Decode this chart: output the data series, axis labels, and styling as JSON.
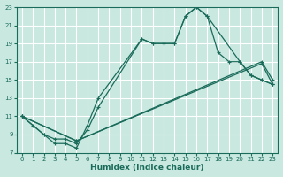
{
  "xlabel": "Humidex (Indice chaleur)",
  "background_color": "#c8e8e0",
  "line_color": "#1a6b5a",
  "grid_color": "#ffffff",
  "xlim": [
    -0.5,
    23.5
  ],
  "ylim": [
    7,
    23
  ],
  "xticks": [
    0,
    1,
    2,
    3,
    4,
    5,
    6,
    7,
    8,
    9,
    10,
    11,
    12,
    13,
    14,
    15,
    16,
    17,
    18,
    19,
    20,
    21,
    22,
    23
  ],
  "yticks": [
    7,
    9,
    11,
    13,
    15,
    17,
    19,
    21,
    23
  ],
  "line0_x": [
    0,
    1,
    2,
    3,
    4,
    5,
    6,
    7,
    11,
    12,
    13,
    14,
    15,
    16,
    17,
    18,
    19,
    20,
    21,
    22,
    23
  ],
  "line0_y": [
    11,
    10,
    9,
    8,
    8,
    7.5,
    10,
    13,
    19.5,
    19,
    19,
    19,
    22,
    23,
    22,
    18,
    17,
    17,
    15.5,
    15,
    14.5
  ],
  "line1_x": [
    0,
    2,
    3,
    4,
    5,
    6,
    7,
    11,
    12,
    13,
    14,
    15,
    16,
    17,
    20,
    21,
    22,
    23
  ],
  "line1_y": [
    11,
    9,
    8.5,
    8.5,
    8,
    9.5,
    12,
    19.5,
    19,
    19,
    19,
    22,
    23,
    22,
    17,
    15.5,
    15,
    14.5
  ],
  "line2_x": [
    0,
    5,
    22,
    23
  ],
  "line2_y": [
    11,
    8.3,
    17,
    15
  ],
  "line3_x": [
    0,
    5,
    22,
    23
  ],
  "line3_y": [
    11,
    8.3,
    16.8,
    14.5
  ]
}
